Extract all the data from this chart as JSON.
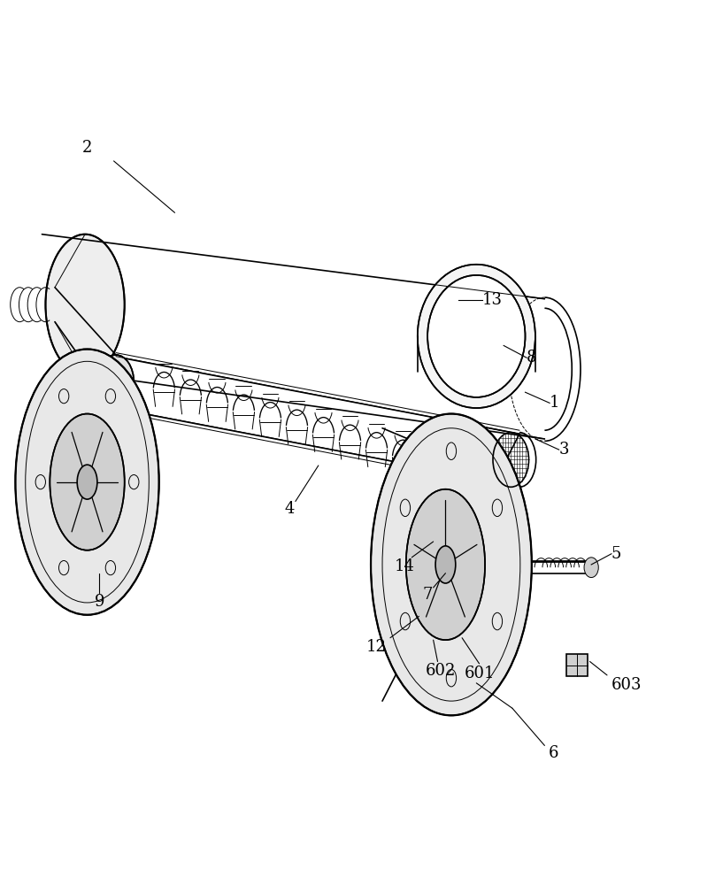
{
  "bg_color": "#ffffff",
  "line_color": "#000000",
  "line_width": 1.2,
  "thin_line": 0.7,
  "label_fontsize": 13
}
